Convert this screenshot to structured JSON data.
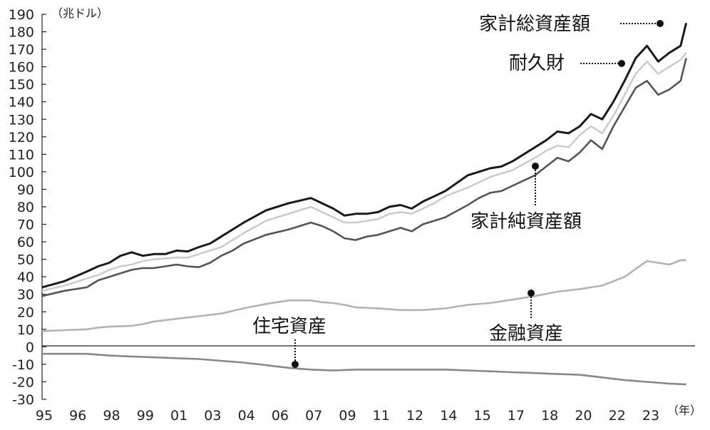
{
  "chart_data": {
    "type": "line",
    "y_unit_label": "（兆ドル）",
    "x_unit_label": "（年）",
    "ylim": [
      -30,
      190
    ],
    "y_ticks": [
      "190",
      "180",
      "170",
      "160",
      "150",
      "140",
      "130",
      "120",
      "110",
      "100",
      "90",
      "80",
      "70",
      "60",
      "50",
      "40",
      "30",
      "20",
      "10",
      "0",
      "-10",
      "-20",
      "-30"
    ],
    "x_tick_labels": [
      "95",
      "96",
      "98",
      "99",
      "01",
      "03",
      "04",
      "06",
      "07",
      "09",
      "11",
      "12",
      "14",
      "15",
      "17",
      "18",
      "20",
      "22",
      "23"
    ],
    "grid": false,
    "series": [
      {
        "name": "家計総資産額",
        "color": "#1a1a1a",
        "x": [
          1995,
          1996,
          1997,
          1997.5,
          1998,
          1998.5,
          1999,
          1999.5,
          2000,
          2000.5,
          2001,
          2001.5,
          2002,
          2002.5,
          2003,
          2003.5,
          2004,
          2005,
          2006,
          2007,
          2007.5,
          2008,
          2008.5,
          2009,
          2009.5,
          2010,
          2010.5,
          2011,
          2011.5,
          2012,
          2012.5,
          2013,
          2014,
          2014.5,
          2015,
          2015.5,
          2016,
          2017,
          2017.5,
          2018,
          2018.5,
          2019,
          2019.5,
          2020,
          2020.5,
          2021,
          2021.5,
          2022,
          2022.5,
          2023,
          2023.5,
          2023.75
        ],
        "values": [
          34,
          37.5,
          43,
          46,
          48,
          52,
          54,
          52,
          53,
          53,
          55,
          54.5,
          57,
          59,
          63,
          67,
          71,
          78,
          82,
          85,
          82,
          79,
          75,
          76,
          76,
          77,
          80,
          81,
          79,
          83,
          86,
          89,
          98,
          100,
          102,
          103,
          106,
          114,
          118,
          123,
          122,
          126,
          133,
          130,
          140,
          152,
          165,
          172,
          163,
          168,
          172,
          185
        ]
      },
      {
        "name": "",
        "color": "#cccccc",
        "x": [
          1995,
          1996,
          1997,
          1997.5,
          1998,
          1998.5,
          1999,
          1999.5,
          2000,
          2001,
          2001.5,
          2002,
          2003,
          2003.5,
          2004,
          2005,
          2006,
          2007,
          2007.5,
          2008,
          2008.5,
          2009,
          2009.5,
          2010,
          2010.5,
          2011,
          2011.5,
          2012,
          2012.5,
          2013,
          2014,
          2014.5,
          2015,
          2015.5,
          2016,
          2017,
          2017.5,
          2018,
          2018.5,
          2019,
          2019.5,
          2020,
          2020.5,
          2021,
          2021.5,
          2022,
          2022.5,
          2023,
          2023.5,
          2023.75
        ],
        "values": [
          32,
          35,
          39,
          41,
          44,
          46,
          47,
          49,
          50,
          51,
          51,
          53,
          57,
          61,
          65,
          72,
          76,
          80,
          77,
          74,
          71,
          71,
          72,
          73,
          76,
          77,
          76,
          79,
          82,
          86,
          91,
          94,
          97,
          99,
          101,
          108,
          112,
          115,
          114,
          121,
          126,
          122,
          132,
          144,
          156,
          163,
          156,
          160,
          164,
          168
        ]
      },
      {
        "name": "家計純資産額",
        "color": "#555555",
        "x": [
          1995,
          1996,
          1997,
          1997.5,
          1998,
          1998.5,
          1999,
          1999.5,
          2000,
          2000.5,
          2001,
          2001.5,
          2002,
          2002.5,
          2003,
          2003.5,
          2004,
          2005,
          2006,
          2007,
          2007.5,
          2008,
          2008.5,
          2009,
          2009.5,
          2010,
          2010.5,
          2011,
          2011.5,
          2012,
          2012.5,
          2013,
          2014,
          2014.5,
          2015,
          2015.5,
          2016,
          2017,
          2017.5,
          2018,
          2018.5,
          2019,
          2019.5,
          2020,
          2020.5,
          2021,
          2021.5,
          2022,
          2022.5,
          2023,
          2023.5,
          2023.75
        ],
        "values": [
          29,
          32,
          34,
          38,
          40,
          42,
          44,
          45,
          45,
          46,
          47,
          46,
          45.5,
          48,
          52,
          55,
          59,
          64,
          67,
          71,
          69,
          66,
          62,
          61,
          63,
          64,
          66,
          68,
          66,
          70,
          72,
          74,
          81,
          85,
          88,
          89,
          92,
          98,
          103,
          108,
          106,
          111,
          118,
          113,
          126,
          137,
          148,
          152,
          144,
          147,
          152,
          165
        ]
      },
      {
        "name": "金融資産",
        "color": "#b3b3b3",
        "x": [
          1995,
          1996,
          1997,
          1997.5,
          1998,
          1999,
          1999.5,
          2000,
          2001,
          2002,
          2003,
          2004,
          2005,
          2006,
          2007,
          2007.5,
          2008,
          2008.5,
          2009,
          2010,
          2011,
          2012,
          2013,
          2014,
          2015,
          2016,
          2017,
          2018,
          2019,
          2020,
          2021,
          2021.5,
          2022,
          2022.5,
          2023,
          2023.5,
          2023.75
        ],
        "values": [
          9,
          9.5,
          10,
          11,
          11.5,
          12,
          13,
          14.5,
          16,
          17.5,
          19,
          22,
          24.5,
          26.5,
          26.5,
          25.5,
          25,
          24,
          22.5,
          22,
          21,
          21,
          22,
          24,
          25,
          27,
          29,
          31.5,
          33,
          35,
          40,
          44.5,
          49,
          48,
          47,
          49.5,
          49.5
        ]
      },
      {
        "name": "住宅資産",
        "color": "#888888",
        "x": [
          1995,
          1996,
          1997,
          1998,
          1999,
          2000,
          2001,
          2002,
          2003,
          2004,
          2005,
          2006,
          2007,
          2008,
          2009,
          2010,
          2011,
          2012,
          2013,
          2014,
          2015,
          2016,
          2017,
          2018,
          2019,
          2020,
          2021,
          2022,
          2023,
          2023.75
        ],
        "values": [
          -4,
          -4,
          -4,
          -5,
          -5.5,
          -6,
          -6.5,
          -7,
          -8,
          -9,
          -10.5,
          -12,
          -13,
          -13.5,
          -13,
          -13,
          -13,
          -13,
          -13,
          -13.5,
          -14,
          -14.5,
          -15,
          -15.5,
          -16,
          -17.5,
          -19,
          -20,
          -21,
          -21.5
        ]
      }
    ],
    "annotations": [
      {
        "text": "家計総資産額",
        "x": 2023.5,
        "y": 185
      },
      {
        "text": "耐久財",
        "x": 2022.0,
        "y": 152
      },
      {
        "text": "家計純資産額",
        "x": 2017.6,
        "y": 103
      },
      {
        "text": "住宅資産",
        "x": 2006.5,
        "y": -11
      },
      {
        "text": "金融資産",
        "x": 2017.4,
        "y": 30
      }
    ]
  }
}
